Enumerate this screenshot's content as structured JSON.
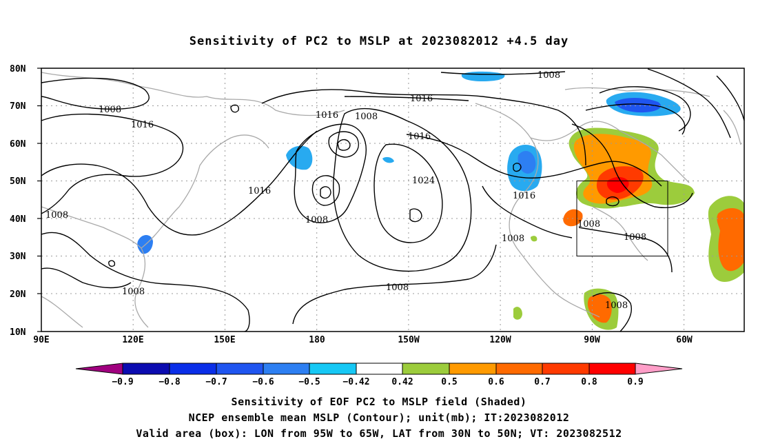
{
  "title": "Sensitivity of PC2 to MSLP at 2023082012 +4.5 day",
  "lat_labels": [
    "80N",
    "70N",
    "60N",
    "50N",
    "40N",
    "30N",
    "20N",
    "10N"
  ],
  "lon_labels": [
    "90E",
    "120E",
    "150E",
    "180",
    "150W",
    "120W",
    "90W",
    "60W"
  ],
  "contour_labels": [
    "1008",
    "1008",
    "1016",
    "1016",
    "1008",
    "1016",
    "1008",
    "1016",
    "1024",
    "1008",
    "1016",
    "1008",
    "1008",
    "1008",
    "1016",
    "1008",
    "1008"
  ],
  "colorbar": {
    "ticks": [
      "−0.9",
      "−0.8",
      "−0.7",
      "−0.6",
      "−0.5",
      "−0.42",
      "0.42",
      "0.5",
      "0.6",
      "0.7",
      "0.8",
      "0.9"
    ],
    "colors": [
      "#a0007f",
      "#0b0bb0",
      "#0a2ee8",
      "#1f55f0",
      "#2d7ff2",
      "#28aaf0",
      "#16c8f5",
      "#ffffff",
      "#9ccc3c",
      "#ff9a00",
      "#ff6a00",
      "#ff3a00",
      "#ff0000",
      "#ff9ec8"
    ]
  },
  "footer": {
    "line1": "Sensitivity of EOF PC2 to MSLP field (Shaded)",
    "line2": "NCEP ensemble mean MSLP (Contour); unit(mb); IT:2023082012",
    "line3": "Valid area (box): LON from 95W to 65W, LAT from 30N to 50N; VT: 2023082512"
  }
}
